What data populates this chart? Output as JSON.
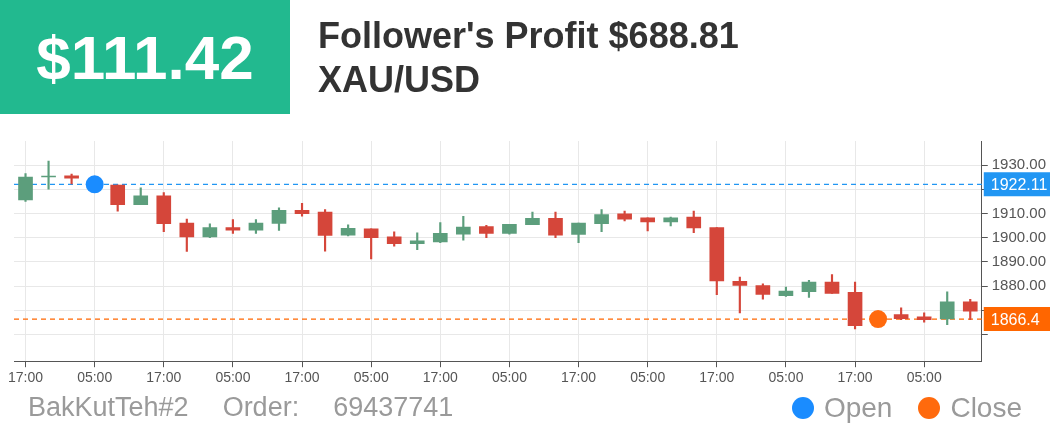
{
  "chart_data": {
    "type": "candlestick",
    "title": "Follower's Profit $688.81",
    "subtitle": "XAU/USD",
    "annotations": [
      "$111.42",
      "BakKutTeh#2",
      "Order:",
      "69437741"
    ],
    "categories": [
      "17:00",
      null,
      null,
      "05:00",
      null,
      null,
      "17:00",
      null,
      null,
      "05:00",
      null,
      null,
      "17:00",
      null,
      null,
      "05:00",
      null,
      null,
      "17:00",
      null,
      null,
      "05:00",
      null,
      null,
      "17:00",
      null,
      null,
      "05:00",
      null,
      null,
      "17:00",
      null,
      null,
      "05:00",
      null,
      null,
      "17:00",
      null,
      null,
      "05:00",
      null,
      null
    ],
    "ohlc": [
      [
        1915.6,
        1926.5,
        1915.0,
        1925.1
      ],
      [
        1925.2,
        1931.7,
        1920.1,
        1925.5
      ],
      [
        1925.6,
        1926.3,
        1922.3,
        1924.6
      ],
      null,
      [
        1921.8,
        1921.8,
        1911.0,
        1913.7
      ],
      [
        1913.7,
        1920.6,
        1913.7,
        1917.3
      ],
      [
        1917.3,
        1918.7,
        1902.5,
        1905.8
      ],
      [
        1906.1,
        1907.7,
        1894.4,
        1900.4
      ],
      [
        1900.4,
        1905.8,
        1900.1,
        1904.2
      ],
      [
        1904.2,
        1907.5,
        1901.8,
        1903.2
      ],
      [
        1903.2,
        1907.5,
        1901.8,
        1906.1
      ],
      [
        1905.9,
        1912.4,
        1903.0,
        1911.3
      ],
      [
        1911.3,
        1914.2,
        1908.9,
        1910.0
      ],
      [
        1910.6,
        1911.7,
        1894.5,
        1901.0
      ],
      [
        1901.1,
        1905.4,
        1900.8,
        1903.9
      ],
      [
        1903.7,
        1903.7,
        1891.3,
        1900.1
      ],
      [
        1900.4,
        1902.5,
        1896.5,
        1897.6
      ],
      [
        1897.6,
        1902.1,
        1895.1,
        1898.7
      ],
      [
        1898.3,
        1906.3,
        1898.0,
        1901.8
      ],
      [
        1901.5,
        1908.9,
        1899.0,
        1904.4
      ],
      [
        1904.6,
        1905.1,
        1900.1,
        1901.8
      ],
      [
        1901.8,
        1905.6,
        1901.5,
        1905.6
      ],
      [
        1905.4,
        1910.6,
        1905.4,
        1908.0
      ],
      [
        1908.0,
        1910.6,
        1900.1,
        1901.1
      ],
      [
        1901.4,
        1906.1,
        1898.0,
        1906.1
      ],
      [
        1905.8,
        1911.7,
        1902.5,
        1909.6
      ],
      [
        1909.9,
        1911.0,
        1907.0,
        1907.7
      ],
      [
        1908.3,
        1908.3,
        1902.8,
        1906.6
      ],
      [
        1906.6,
        1908.6,
        1904.9,
        1908.3
      ],
      [
        1908.6,
        1911.0,
        1902.1,
        1904.1
      ],
      [
        1904.2,
        1904.2,
        1876.5,
        1882.2
      ],
      [
        1882.0,
        1883.8,
        1869.0,
        1880.3
      ],
      [
        1880.3,
        1881.0,
        1874.6,
        1876.6
      ],
      [
        1876.1,
        1879.6,
        1875.8,
        1878.0
      ],
      [
        1877.7,
        1882.4,
        1875.4,
        1881.7
      ],
      [
        1881.7,
        1884.8,
        1877.0,
        1877.0
      ],
      [
        1877.5,
        1881.7,
        1862.3,
        1863.7
      ],
      null,
      [
        1868.3,
        1871.1,
        1866.2,
        1866.6
      ],
      [
        1867.3,
        1869.0,
        1865.1,
        1866.2
      ],
      [
        1866.5,
        1877.7,
        1864.1,
        1873.5
      ],
      [
        1873.5,
        1874.6,
        1866.2,
        1869.7
      ]
    ],
    "series": [
      {
        "name": "Open",
        "color": "#1a8cff",
        "type": "scatter",
        "values": [
          null,
          null,
          null,
          1922.11,
          null,
          null,
          null,
          null,
          null,
          null,
          null,
          null,
          null,
          null,
          null,
          null,
          null,
          null,
          null,
          null,
          null,
          null,
          null,
          null,
          null,
          null,
          null,
          null,
          null,
          null,
          null,
          null,
          null,
          null,
          null,
          null,
          null,
          null,
          null,
          null,
          null,
          null
        ]
      },
      {
        "name": "Close",
        "color": "#ff6a0d",
        "type": "scatter",
        "values": [
          null,
          null,
          null,
          null,
          null,
          null,
          null,
          null,
          null,
          null,
          null,
          null,
          null,
          null,
          null,
          null,
          null,
          null,
          null,
          null,
          null,
          null,
          null,
          null,
          null,
          null,
          null,
          null,
          null,
          null,
          null,
          null,
          null,
          null,
          null,
          null,
          null,
          1866.4,
          null,
          null,
          null,
          null
        ]
      }
    ],
    "marker": "circle",
    "ylim": [
      1849,
      1940
    ],
    "yticks": [
      {
        "value": 1860,
        "label": null
      },
      {
        "value": 1870,
        "label": null
      },
      {
        "value": 1880,
        "label": "1880.00"
      },
      {
        "value": 1890,
        "label": "1890.00"
      },
      {
        "value": 1900,
        "label": "1900.00"
      },
      {
        "value": 1910,
        "label": "1910.00"
      },
      {
        "value": 1920,
        "label": null
      },
      {
        "value": 1930,
        "label": "1930.00"
      }
    ],
    "ref_lines": [
      {
        "axis": "y",
        "value": 1922.11,
        "label": "1922.11",
        "color": "#2196f3",
        "line_style": "dashed"
      },
      {
        "axis": "y",
        "value": 1866.4,
        "label": "1866.4",
        "color": "#ff6600",
        "line_style": "dashed"
      }
    ],
    "grid": true,
    "legend": "bottom right"
  }
}
